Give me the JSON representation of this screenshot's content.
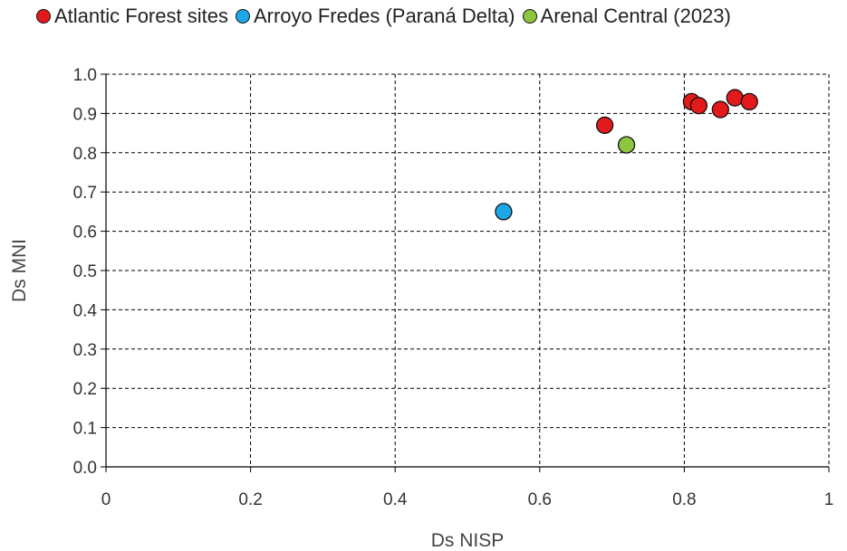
{
  "chart_data": {
    "type": "scatter",
    "title": "",
    "xlabel": "Ds NISP",
    "ylabel": "Ds MNI",
    "xlim": [
      0,
      1
    ],
    "ylim": [
      0,
      1
    ],
    "x_ticks": [
      "0",
      "0.2",
      "0.4",
      "0.6",
      "0.8",
      "1"
    ],
    "y_ticks": [
      "0.0",
      "0.1",
      "0.2",
      "0.3",
      "0.4",
      "0.5",
      "0.6",
      "0.7",
      "0.8",
      "0.9",
      "1.0"
    ],
    "grid": true,
    "legend_position": "top",
    "series": [
      {
        "name": "Atlantic Forest sites",
        "color": "#e31a1c",
        "points": [
          {
            "x": 0.69,
            "y": 0.87
          },
          {
            "x": 0.81,
            "y": 0.93
          },
          {
            "x": 0.82,
            "y": 0.92
          },
          {
            "x": 0.85,
            "y": 0.91
          },
          {
            "x": 0.87,
            "y": 0.94
          },
          {
            "x": 0.89,
            "y": 0.93
          }
        ]
      },
      {
        "name": "Arroyo Fredes (Paraná Delta)",
        "color": "#1ea7e6",
        "points": [
          {
            "x": 0.55,
            "y": 0.65
          }
        ]
      },
      {
        "name": "Arenal Central (2023)",
        "color": "#8dc63f",
        "points": [
          {
            "x": 0.72,
            "y": 0.82
          }
        ]
      }
    ]
  }
}
